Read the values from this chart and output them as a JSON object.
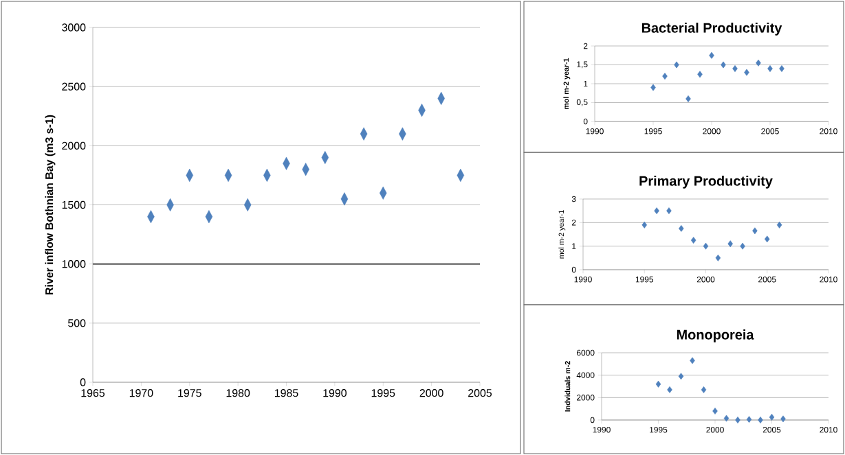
{
  "chart_data": [
    {
      "type": "scatter",
      "ylabel": "River inflow Bothnian Bay (m3 s-1)",
      "color": "#4f81bd",
      "marker": "diamond",
      "grid": "y",
      "x": [
        1971,
        1973,
        1975,
        1977,
        1979,
        1981,
        1983,
        1985,
        1987,
        1989,
        1991,
        1993,
        1995,
        1997,
        1999,
        2001,
        2003
      ],
      "values": [
        1400,
        1500,
        1750,
        1400,
        1750,
        1500,
        1750,
        1850,
        1800,
        1900,
        1550,
        2100,
        1600,
        2100,
        2300,
        2400,
        1750
      ],
      "xlim": [
        1965,
        2005
      ],
      "xticks": [
        1965,
        1970,
        1975,
        1980,
        1985,
        1990,
        1995,
        2000,
        2005
      ],
      "ylim": [
        0,
        3000
      ],
      "yticks": [
        0,
        500,
        1000,
        1500,
        2000,
        2500,
        3000
      ],
      "ref_lines": [
        {
          "axis": "y",
          "value": 1000,
          "color": "#808080"
        }
      ]
    },
    {
      "type": "scatter",
      "title": "Bacterial Productivity",
      "ylabel": "mol m-2 year-1",
      "color": "#4f81bd",
      "marker": "diamond",
      "grid": "y",
      "x": [
        1995,
        1996,
        1997,
        1998,
        1999,
        2000,
        2001,
        2002,
        2003,
        2004,
        2005,
        2006
      ],
      "values": [
        0.9,
        1.2,
        1.5,
        0.6,
        1.25,
        1.75,
        1.5,
        1.4,
        1.3,
        1.55,
        1.4,
        1.4
      ],
      "xlim": [
        1990,
        2010
      ],
      "xticks": [
        1990,
        1995,
        2000,
        2005,
        2010
      ],
      "ylim": [
        0,
        2
      ],
      "yticks": [
        0,
        {
          "value": 0.5,
          "label": "0,5"
        },
        1,
        {
          "value": 1.5,
          "label": "1,5"
        },
        2
      ]
    },
    {
      "type": "scatter",
      "title": "Primary Productivity",
      "ylabel": "mol m-2 year-1",
      "color": "#4f81bd",
      "marker": "diamond",
      "grid": "y",
      "x": [
        1995,
        1996,
        1997,
        1998,
        1999,
        2000,
        2001,
        2002,
        2003,
        2004,
        2005,
        2006
      ],
      "values": [
        1.9,
        2.5,
        2.5,
        1.75,
        1.25,
        1.0,
        0.5,
        1.1,
        1.0,
        1.65,
        1.3,
        1.9
      ],
      "xlim": [
        1990,
        2010
      ],
      "xticks": [
        1990,
        1995,
        2000,
        2005,
        2010
      ],
      "ylim": [
        0,
        3
      ],
      "yticks": [
        0,
        1,
        2,
        3
      ]
    },
    {
      "type": "scatter",
      "title": "Monoporeia",
      "ylabel": "Indviduals m-2",
      "color": "#4f81bd",
      "marker": "diamond",
      "grid": "y",
      "x": [
        1995,
        1996,
        1997,
        1998,
        1999,
        2000,
        2001,
        2002,
        2003,
        2004,
        2005,
        2006
      ],
      "values": [
        3200,
        2700,
        3900,
        5300,
        2700,
        800,
        150,
        0,
        50,
        0,
        250,
        100
      ],
      "xlim": [
        1990,
        2010
      ],
      "xticks": [
        1990,
        1995,
        2000,
        2005,
        2010
      ],
      "ylim": [
        0,
        6000
      ],
      "yticks": [
        0,
        2000,
        4000,
        6000
      ]
    }
  ]
}
